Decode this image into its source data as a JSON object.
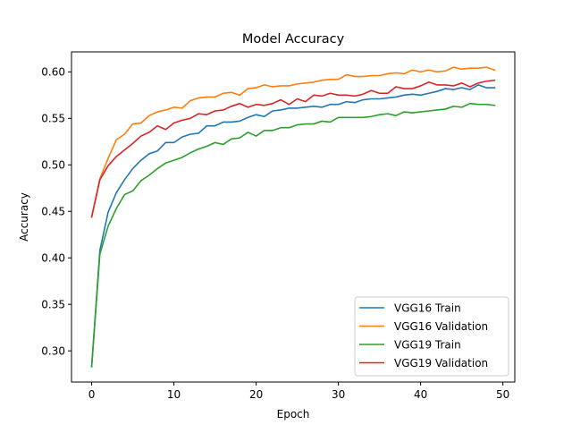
{
  "chart_data": {
    "type": "line",
    "title": "Model Accuracy",
    "xlabel": "Epoch",
    "ylabel": "Accuracy",
    "xlim": [
      -2.45,
      51.45
    ],
    "ylim": [
      0.2665,
      0.6215
    ],
    "xticks": [
      0,
      10,
      20,
      30,
      40,
      50
    ],
    "xtick_labels": [
      "0",
      "10",
      "20",
      "30",
      "40",
      "50"
    ],
    "yticks": [
      0.3,
      0.35,
      0.4,
      0.45,
      0.5,
      0.55,
      0.6
    ],
    "ytick_labels": [
      "0.30",
      "0.35",
      "0.40",
      "0.45",
      "0.50",
      "0.55",
      "0.60"
    ],
    "grid": false,
    "legend_position": "lower-right",
    "x": [
      0,
      1,
      2,
      3,
      4,
      5,
      6,
      7,
      8,
      9,
      10,
      11,
      12,
      13,
      14,
      15,
      16,
      17,
      18,
      19,
      20,
      21,
      22,
      23,
      24,
      25,
      26,
      27,
      28,
      29,
      30,
      31,
      32,
      33,
      34,
      35,
      36,
      37,
      38,
      39,
      40,
      41,
      42,
      43,
      44,
      45,
      46,
      47,
      48,
      49
    ],
    "series": [
      {
        "name": "VGG16 Train",
        "color": "#1f77b4",
        "values": [
          0.283,
          0.408,
          0.449,
          0.47,
          0.484,
          0.496,
          0.505,
          0.512,
          0.515,
          0.524,
          0.524,
          0.53,
          0.533,
          0.534,
          0.542,
          0.542,
          0.546,
          0.546,
          0.547,
          0.551,
          0.554,
          0.552,
          0.558,
          0.559,
          0.561,
          0.561,
          0.562,
          0.563,
          0.562,
          0.565,
          0.565,
          0.568,
          0.567,
          0.57,
          0.571,
          0.571,
          0.572,
          0.573,
          0.575,
          0.576,
          0.575,
          0.577,
          0.579,
          0.582,
          0.581,
          0.583,
          0.581,
          0.586,
          0.583,
          0.583
        ]
      },
      {
        "name": "VGG16 Validation",
        "color": "#ff7f0e",
        "values": [
          0.444,
          0.485,
          0.507,
          0.527,
          0.533,
          0.544,
          0.545,
          0.553,
          0.557,
          0.559,
          0.562,
          0.561,
          0.569,
          0.572,
          0.573,
          0.573,
          0.577,
          0.578,
          0.575,
          0.582,
          0.583,
          0.586,
          0.584,
          0.585,
          0.585,
          0.587,
          0.588,
          0.589,
          0.591,
          0.592,
          0.592,
          0.597,
          0.595,
          0.595,
          0.596,
          0.596,
          0.598,
          0.599,
          0.598,
          0.602,
          0.6,
          0.602,
          0.6,
          0.601,
          0.605,
          0.603,
          0.604,
          0.604,
          0.605,
          0.602
        ]
      },
      {
        "name": "VGG19 Train",
        "color": "#2ca02c",
        "values": [
          0.283,
          0.404,
          0.434,
          0.453,
          0.468,
          0.472,
          0.483,
          0.489,
          0.496,
          0.502,
          0.505,
          0.508,
          0.513,
          0.517,
          0.52,
          0.524,
          0.522,
          0.528,
          0.529,
          0.535,
          0.531,
          0.537,
          0.537,
          0.54,
          0.54,
          0.543,
          0.544,
          0.544,
          0.547,
          0.546,
          0.551,
          0.551,
          0.551,
          0.551,
          0.552,
          0.554,
          0.555,
          0.553,
          0.557,
          0.556,
          0.557,
          0.558,
          0.559,
          0.56,
          0.563,
          0.562,
          0.566,
          0.565,
          0.565,
          0.564
        ]
      },
      {
        "name": "VGG19 Validation",
        "color": "#d62728",
        "values": [
          0.444,
          0.484,
          0.499,
          0.509,
          0.516,
          0.523,
          0.531,
          0.535,
          0.542,
          0.538,
          0.545,
          0.548,
          0.55,
          0.555,
          0.554,
          0.558,
          0.559,
          0.563,
          0.566,
          0.562,
          0.565,
          0.564,
          0.566,
          0.57,
          0.565,
          0.571,
          0.568,
          0.575,
          0.574,
          0.577,
          0.575,
          0.575,
          0.574,
          0.576,
          0.58,
          0.577,
          0.577,
          0.584,
          0.582,
          0.582,
          0.585,
          0.589,
          0.586,
          0.586,
          0.585,
          0.588,
          0.584,
          0.588,
          0.59,
          0.591
        ]
      }
    ]
  }
}
